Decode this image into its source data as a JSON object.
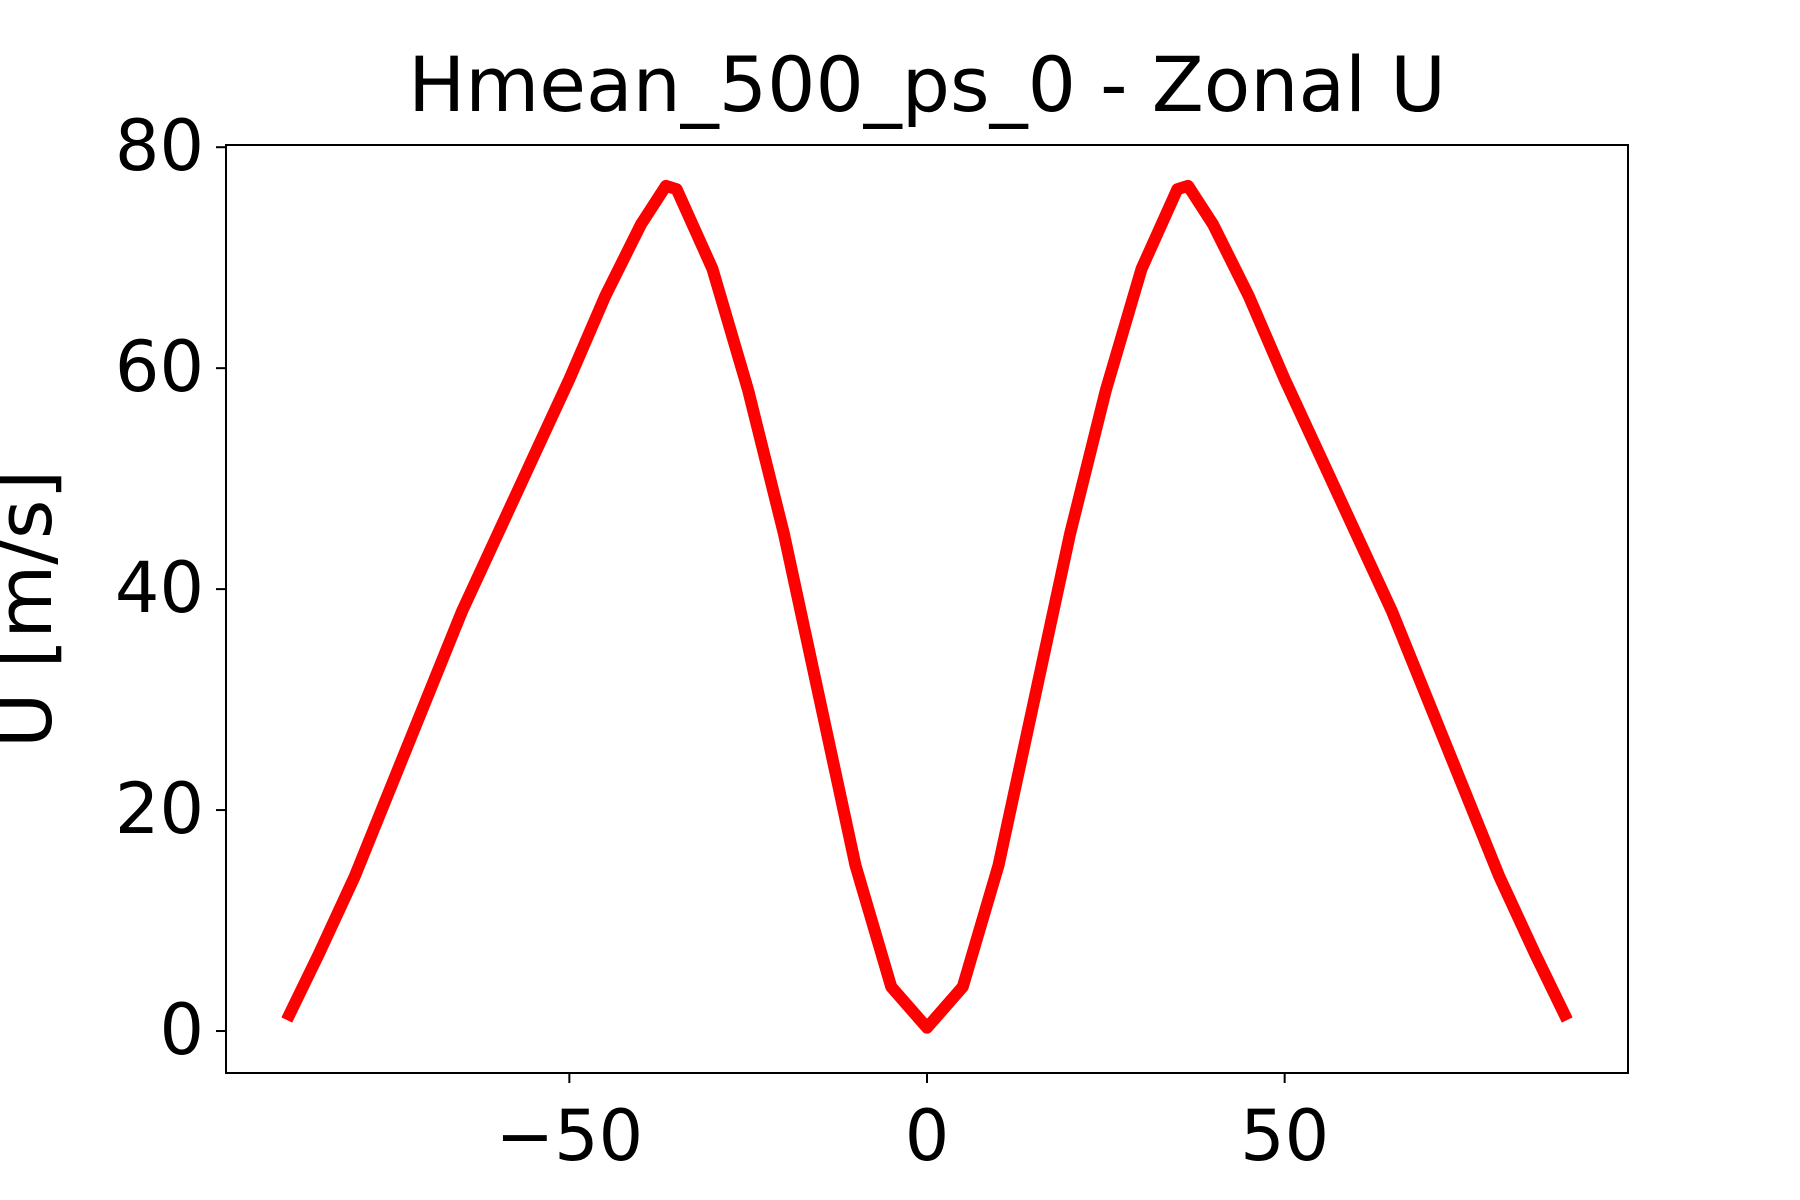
{
  "chart_data": {
    "type": "line",
    "title": "Hmean_500_ps_0 - Zonal U",
    "ylabel": "U [m/s]",
    "x": [
      -89.5,
      -85,
      -80,
      -75,
      -70,
      -65,
      -60,
      -55,
      -50,
      -45,
      -40,
      -36.5,
      -35,
      -30,
      -25,
      -20,
      -15,
      -10,
      -5,
      0,
      5,
      10,
      15,
      20,
      25,
      30,
      35,
      36.5,
      40,
      45,
      50,
      55,
      60,
      65,
      70,
      75,
      80,
      85,
      89.5
    ],
    "series": [
      {
        "color": "#ff0000",
        "values": [
          1,
          7,
          14,
          22,
          30,
          38,
          45,
          52,
          59,
          66.5,
          73,
          76.5,
          76.2,
          69,
          58,
          45,
          30,
          15,
          4,
          0.3,
          4,
          15,
          30,
          45,
          58,
          69,
          76.2,
          76.5,
          73,
          66.5,
          59,
          52,
          45,
          38,
          30,
          22,
          14,
          7,
          1
        ]
      }
    ],
    "xlim": [
      -98,
      98
    ],
    "ylim": [
      -3.8,
      80.2
    ],
    "xticks": [
      {
        "value": -50,
        "label": "−50"
      },
      0,
      50
    ],
    "yticks": [
      0,
      20,
      40,
      60,
      80
    ]
  }
}
